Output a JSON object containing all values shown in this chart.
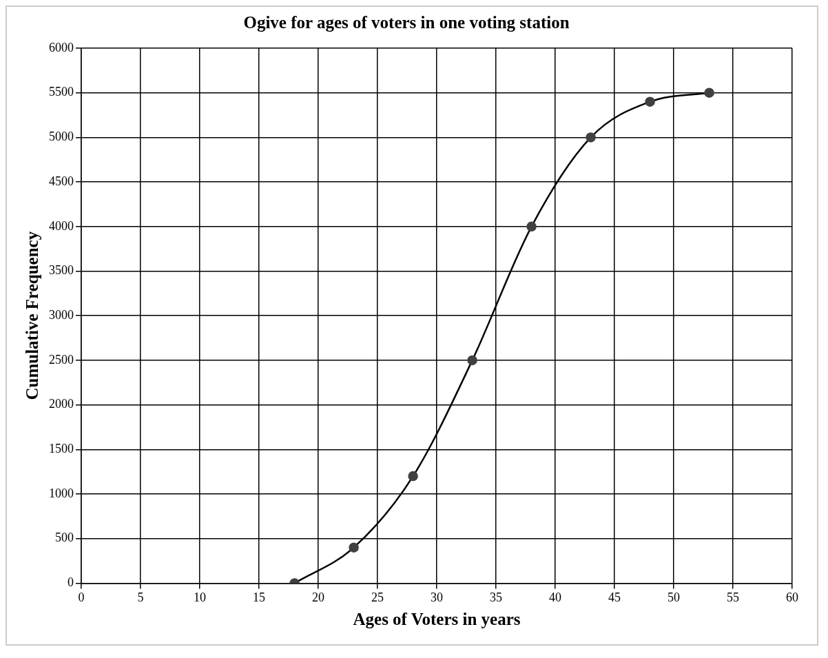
{
  "chart_data": {
    "type": "line",
    "title": "Ogive for ages of voters in one voting station",
    "xlabel": "Ages of Voters in years",
    "ylabel": "Cumulative Frequency",
    "x": [
      18,
      23,
      28,
      33,
      38,
      43,
      48,
      53
    ],
    "series": [
      {
        "color": "#404040",
        "values": [
          0,
          400,
          1200,
          2500,
          4000,
          5000,
          5400,
          5500
        ]
      }
    ],
    "xlim": [
      0,
      60
    ],
    "xticks": [
      0,
      5,
      10,
      15,
      20,
      25,
      30,
      35,
      40,
      45,
      50,
      55,
      60
    ],
    "ylim": [
      0,
      6000
    ],
    "yticks": [
      0,
      500,
      1000,
      1500,
      2000,
      2500,
      3000,
      3500,
      4000,
      4500,
      5000,
      5500,
      6000
    ],
    "grid": true,
    "legend": false,
    "marker": "circle",
    "line_style": "solid"
  }
}
